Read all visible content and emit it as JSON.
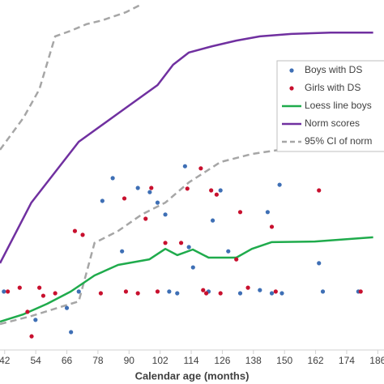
{
  "chart_data": {
    "type": "scatter-line",
    "x_label": "Calendar age (months)",
    "xlim": [
      40.2,
      188.4
    ],
    "ylim": [
      0,
      100
    ],
    "xticks": [
      42,
      54,
      66,
      78,
      90,
      102,
      114,
      126,
      138,
      150,
      162,
      174,
      186
    ],
    "series": [
      {
        "name": "Boys with DS",
        "kind": "scatter",
        "color": "#3e6fb5",
        "x": [
          41.7,
          53.9,
          66.0,
          67.6,
          83.7,
          79.7,
          87.3,
          93.4,
          98.0,
          101.0,
          105.5,
          108.6,
          111.6,
          113.1,
          122.3,
          120.7,
          125.3,
          128.3,
          132.9,
          143.5,
          140.5,
          145.1,
          148.1,
          149.0,
          163.3,
          164.8,
          178.5,
          104.0,
          114.7,
          70.6
        ],
        "values": [
          16.7,
          8.6,
          12.0,
          5.1,
          49.1,
          42.6,
          28.2,
          46.3,
          45.1,
          42.1,
          16.7,
          16.2,
          52.5,
          29.4,
          37.0,
          16.7,
          45.6,
          28.2,
          16.2,
          39.4,
          17.1,
          16.2,
          47.2,
          16.2,
          24.8,
          16.7,
          16.7,
          38.7,
          23.6,
          16.7
        ]
      },
      {
        "name": "Girls with DS",
        "kind": "scatter",
        "color": "#c8102e",
        "x": [
          43.2,
          47.8,
          55.4,
          56.9,
          61.5,
          69.1,
          72.1,
          79.1,
          88.2,
          88.8,
          93.4,
          96.4,
          98.6,
          101.0,
          104.0,
          110.1,
          112.5,
          117.7,
          118.6,
          119.8,
          121.7,
          123.8,
          125.3,
          131.4,
          132.9,
          135.9,
          145.1,
          146.6,
          163.3,
          179.4,
          52.4,
          50.8
        ],
        "values": [
          16.7,
          17.8,
          17.8,
          15.5,
          16.2,
          34.0,
          32.9,
          16.2,
          43.3,
          16.7,
          16.2,
          37.5,
          46.3,
          16.7,
          30.6,
          30.6,
          46.1,
          51.9,
          17.1,
          16.2,
          45.6,
          44.4,
          16.2,
          25.9,
          39.4,
          17.8,
          35.2,
          16.7,
          45.6,
          16.7,
          3.9,
          10.9
        ]
      },
      {
        "name": "Loess line boys",
        "kind": "line",
        "color": "#1fab4c",
        "x": [
          40.2,
          49.3,
          58.4,
          67.5,
          76.7,
          85.8,
          97.9,
          104.0,
          108.6,
          114.6,
          120.7,
          131.4,
          137.4,
          145.0,
          161.7,
          184.2
        ],
        "values": [
          8.1,
          10.2,
          13.2,
          16.7,
          21.3,
          24.3,
          25.9,
          28.9,
          27.1,
          28.7,
          26.4,
          26.4,
          28.9,
          30.8,
          31.0,
          32.2
        ]
      },
      {
        "name": "Norm scores",
        "kind": "line",
        "color": "#7030a0",
        "x": [
          40.2,
          52.3,
          70.6,
          85.8,
          101.0,
          107.0,
          113.1,
          122.2,
          131.4,
          140.5,
          152.6,
          167.8,
          184.2
        ],
        "values": [
          24.8,
          42.1,
          59.5,
          67.6,
          75.7,
          81.5,
          85.0,
          86.8,
          88.4,
          89.6,
          90.3,
          90.7,
          90.7
        ]
      },
      {
        "name": "95% CI of norm",
        "kind": "dashed",
        "color": "#a6a6a6",
        "x": [
          40.2,
          49.3,
          55.4,
          61.5,
          67.5,
          73.6,
          79.7,
          88.8,
          94.9
        ],
        "values": [
          57.2,
          66.4,
          74.5,
          89.6,
          91.2,
          93.1,
          94.2,
          96.5,
          98.8
        ],
        "x_lower": [
          40.2,
          52.3,
          64.5,
          70.6,
          76.7,
          85.8,
          94.9,
          104.0,
          113.1,
          125.3,
          137.4,
          148.1,
          184.2
        ],
        "values_lower": [
          7.4,
          9.7,
          12.5,
          13.9,
          30.6,
          34.0,
          38.7,
          42.1,
          47.9,
          53.7,
          56.0,
          57.2,
          57.2
        ]
      }
    ]
  }
}
